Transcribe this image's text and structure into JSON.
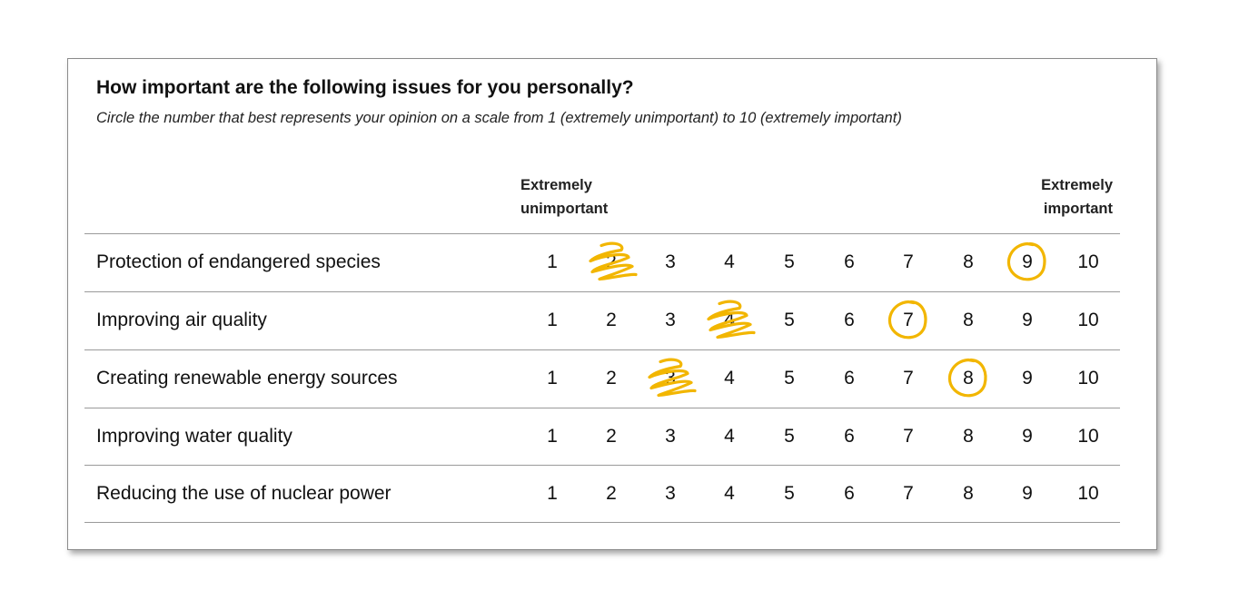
{
  "survey": {
    "question": "How important are the following issues for you personally?",
    "instruction": "Circle the number that best represents your opinion on a scale from 1 (extremely unimportant) to 10 (extremely important)",
    "scale_low": {
      "line1": "Extremely",
      "line2": "unimportant"
    },
    "scale_high": {
      "line1": "Extremely",
      "line2": "important"
    },
    "scale": [
      "1",
      "2",
      "3",
      "4",
      "5",
      "6",
      "7",
      "8",
      "9",
      "10"
    ],
    "items": [
      {
        "label": "Protection of endangered species",
        "circled": 9,
        "crossed_out": 2
      },
      {
        "label": "Improving air quality",
        "circled": 7,
        "crossed_out": 4
      },
      {
        "label": "Creating renewable energy sources",
        "circled": 8,
        "crossed_out": 3
      },
      {
        "label": "Improving water quality",
        "circled": null,
        "crossed_out": null
      },
      {
        "label": "Reducing the use of nuclear power",
        "circled": null,
        "crossed_out": null
      }
    ]
  },
  "colors": {
    "ink": "#f2b600",
    "rule": "#9a9a9a",
    "border": "#8a8a8a"
  }
}
